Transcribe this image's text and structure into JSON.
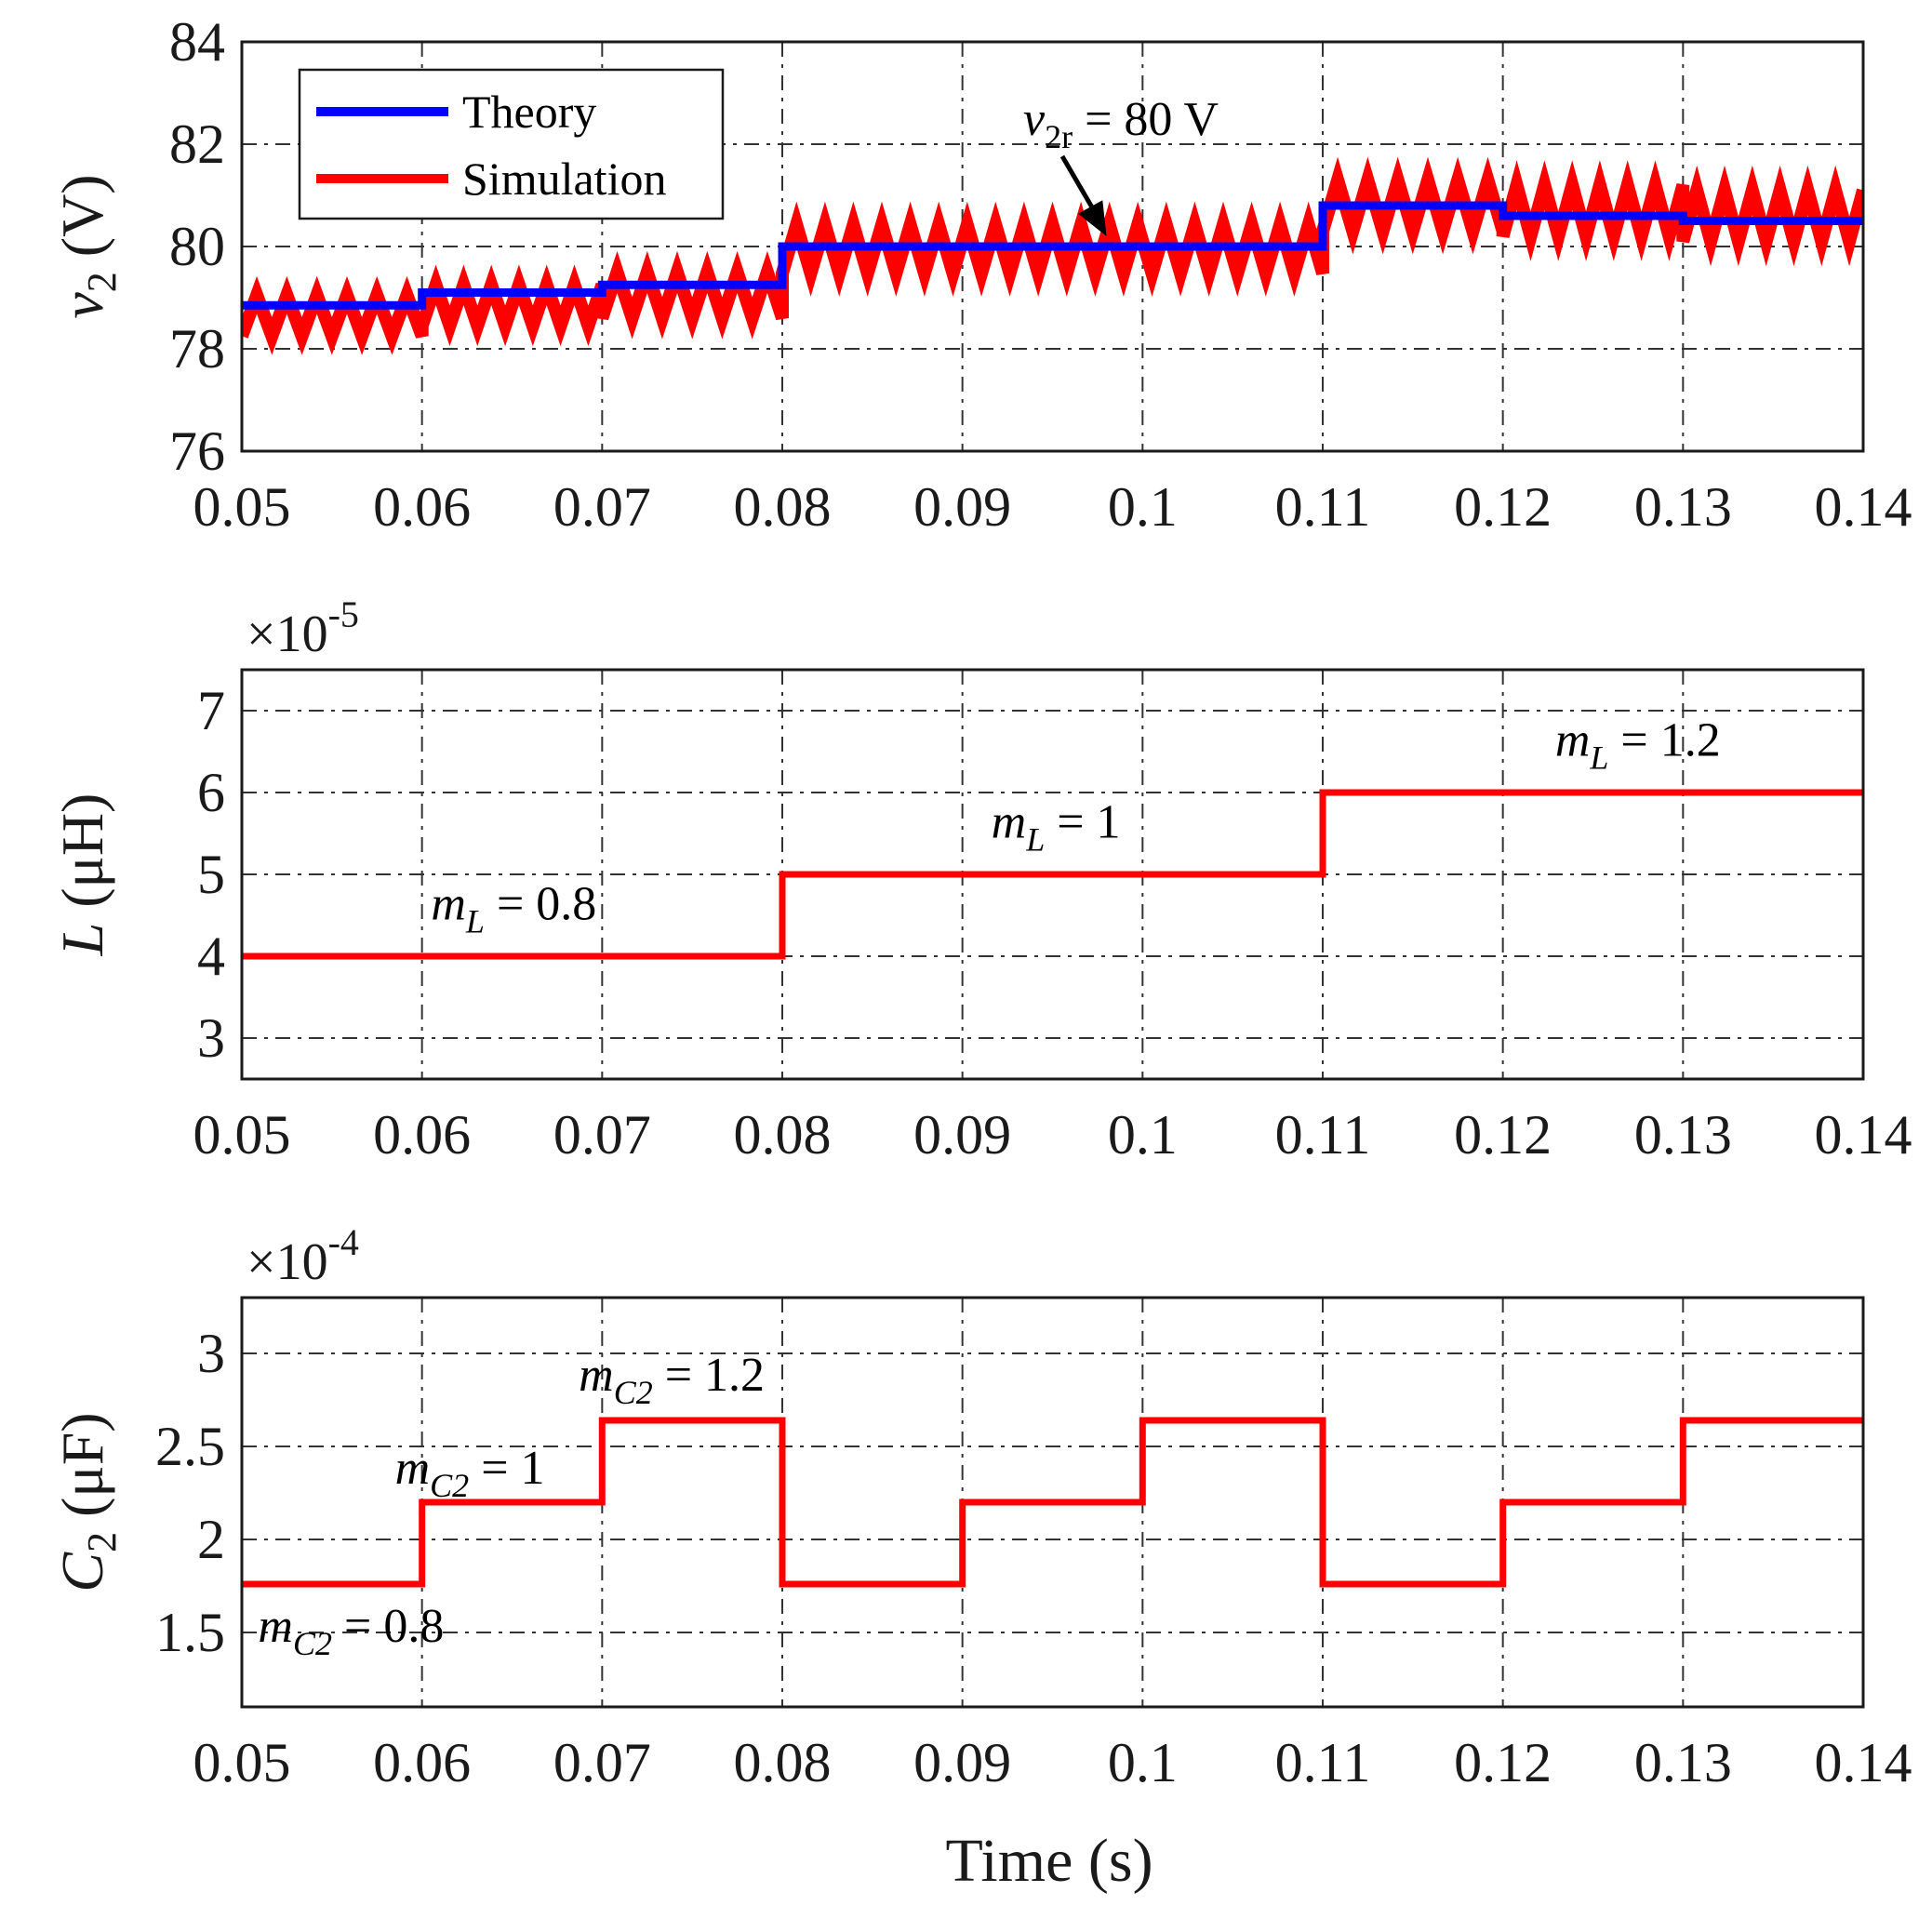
{
  "figure": {
    "xlabel": "Time (s)"
  },
  "chart_data": [
    {
      "type": "line",
      "id": "v2",
      "ylabel": {
        "var": "v",
        "sub": "2",
        "unit": " (V)"
      },
      "xlim": [
        0.05,
        0.14
      ],
      "ylim": [
        76,
        84
      ],
      "xticks": [
        "0.05",
        "0.06",
        "0.07",
        "0.08",
        "0.09",
        "0.1",
        "0.11",
        "0.12",
        "0.13",
        "0.14"
      ],
      "yticks": [
        "76",
        "78",
        "80",
        "82",
        "84"
      ],
      "legend": {
        "position": "top-left",
        "entries": [
          "Theory",
          "Simulation"
        ]
      },
      "annotation": {
        "var": "v",
        "sub": "2r",
        "text": " = 80 V",
        "arrow_to": [
          0.098,
          80.2
        ]
      },
      "series": [
        {
          "name": "Theory",
          "color": "#0000ff",
          "x": [
            0.05,
            0.06,
            0.06,
            0.07,
            0.07,
            0.08,
            0.08,
            0.11,
            0.11,
            0.12,
            0.12,
            0.13,
            0.13,
            0.14
          ],
          "y": [
            78.85,
            78.85,
            79.1,
            79.1,
            79.25,
            79.25,
            80.0,
            80.0,
            80.8,
            80.8,
            80.6,
            80.6,
            80.5,
            80.5
          ]
        },
        {
          "name": "Simulation",
          "color": "#ff0000",
          "segments": [
            {
              "x0": 0.05,
              "x1": 0.06,
              "mean": 78.65,
              "ripple": 0.8
            },
            {
              "x0": 0.06,
              "x1": 0.07,
              "mean": 78.85,
              "ripple": 0.8
            },
            {
              "x0": 0.07,
              "x1": 0.08,
              "mean": 79.05,
              "ripple": 0.9
            },
            {
              "x0": 0.08,
              "x1": 0.11,
              "mean": 79.95,
              "ripple": 0.95
            },
            {
              "x0": 0.11,
              "x1": 0.12,
              "mean": 80.8,
              "ripple": 1.0
            },
            {
              "x0": 0.12,
              "x1": 0.13,
              "mean": 80.7,
              "ripple": 1.0
            },
            {
              "x0": 0.13,
              "x1": 0.14,
              "mean": 80.6,
              "ripple": 1.0
            }
          ]
        }
      ]
    },
    {
      "type": "line",
      "id": "L",
      "ylabel": {
        "var": "L",
        "sub": "",
        "unit": " (μH)"
      },
      "multiplier": {
        "base": "×10",
        "exp": "-5"
      },
      "xlim": [
        0.05,
        0.14
      ],
      "ylim": [
        2.5,
        7.5
      ],
      "xticks": [
        "0.05",
        "0.06",
        "0.07",
        "0.08",
        "0.09",
        "0.1",
        "0.11",
        "0.12",
        "0.13",
        "0.14"
      ],
      "yticks": [
        "3",
        "4",
        "5",
        "6",
        "7"
      ],
      "series": [
        {
          "name": "L",
          "color": "#ff0000",
          "x": [
            0.05,
            0.08,
            0.08,
            0.11,
            0.11,
            0.14
          ],
          "y": [
            4,
            4,
            5,
            5,
            6,
            6
          ]
        }
      ],
      "labels": [
        {
          "var": "m",
          "sub": "L",
          "text": " = 0.8",
          "at": [
            0.0605,
            4.45
          ]
        },
        {
          "var": "m",
          "sub": "L",
          "text": " = 1",
          "at": [
            0.0916,
            5.45
          ]
        },
        {
          "var": "m",
          "sub": "L",
          "text": " = 1.2",
          "at": [
            0.1229,
            6.45
          ]
        }
      ]
    },
    {
      "type": "line",
      "id": "C2",
      "ylabel": {
        "var": "C",
        "sub": "2",
        "unit": " (μF)"
      },
      "multiplier": {
        "base": "×10",
        "exp": "-4"
      },
      "xlim": [
        0.05,
        0.14
      ],
      "ylim": [
        1.1,
        3.3
      ],
      "xticks": [
        "0.05",
        "0.06",
        "0.07",
        "0.08",
        "0.09",
        "0.1",
        "0.11",
        "0.12",
        "0.13",
        "0.14"
      ],
      "yticks": [
        "1.5",
        "2",
        "2.5",
        "3"
      ],
      "series": [
        {
          "name": "C2",
          "color": "#ff0000",
          "x": [
            0.05,
            0.06,
            0.06,
            0.07,
            0.07,
            0.08,
            0.08,
            0.09,
            0.09,
            0.1,
            0.1,
            0.11,
            0.11,
            0.12,
            0.12,
            0.13,
            0.13,
            0.14
          ],
          "y": [
            1.76,
            1.76,
            2.2,
            2.2,
            2.64,
            2.64,
            1.76,
            1.76,
            2.2,
            2.2,
            2.64,
            2.64,
            1.76,
            1.76,
            2.2,
            2.2,
            2.64,
            2.64
          ]
        }
      ],
      "labels": [
        {
          "var": "m",
          "sub": "C2",
          "text": " = 0.8",
          "at": [
            0.0509,
            1.45
          ]
        },
        {
          "var": "m",
          "sub": "C2",
          "text": " = 1",
          "at": [
            0.0585,
            2.3
          ]
        },
        {
          "var": "m",
          "sub": "C2",
          "text": " = 1.2",
          "at": [
            0.0687,
            2.8
          ]
        }
      ]
    }
  ]
}
